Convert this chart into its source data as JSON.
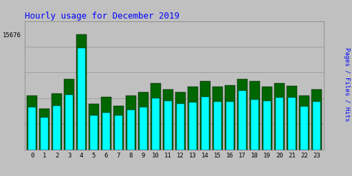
{
  "title": "Hourly usage for December 2019",
  "ylabel": "Pages / Files / Hits",
  "hours": [
    0,
    1,
    2,
    3,
    4,
    5,
    6,
    7,
    8,
    9,
    10,
    11,
    12,
    13,
    14,
    15,
    16,
    17,
    18,
    19,
    20,
    21,
    22,
    23
  ],
  "green_bars": [
    7400,
    5600,
    7600,
    9600,
    15676,
    6200,
    7200,
    6000,
    7400,
    7800,
    9000,
    8200,
    7800,
    8600,
    9300,
    8600,
    8800,
    9600,
    9300,
    8600,
    9000,
    8700,
    7400,
    8200
  ],
  "cyan_bars": [
    5800,
    4400,
    6000,
    7500,
    13800,
    4600,
    5000,
    4600,
    5400,
    5800,
    7000,
    6600,
    6200,
    6400,
    7200,
    6500,
    6500,
    8000,
    6800,
    6600,
    7100,
    7100,
    5900,
    6500
  ],
  "green_color": "#006600",
  "cyan_color": "#00FFFF",
  "bg_color": "#C0C0C0",
  "plot_bg": "#C0C0C0",
  "title_color": "#0000FF",
  "ylabel_color": "#0000FF",
  "ytick_label": "15676",
  "ymax": 17500,
  "bar_width": 0.85
}
